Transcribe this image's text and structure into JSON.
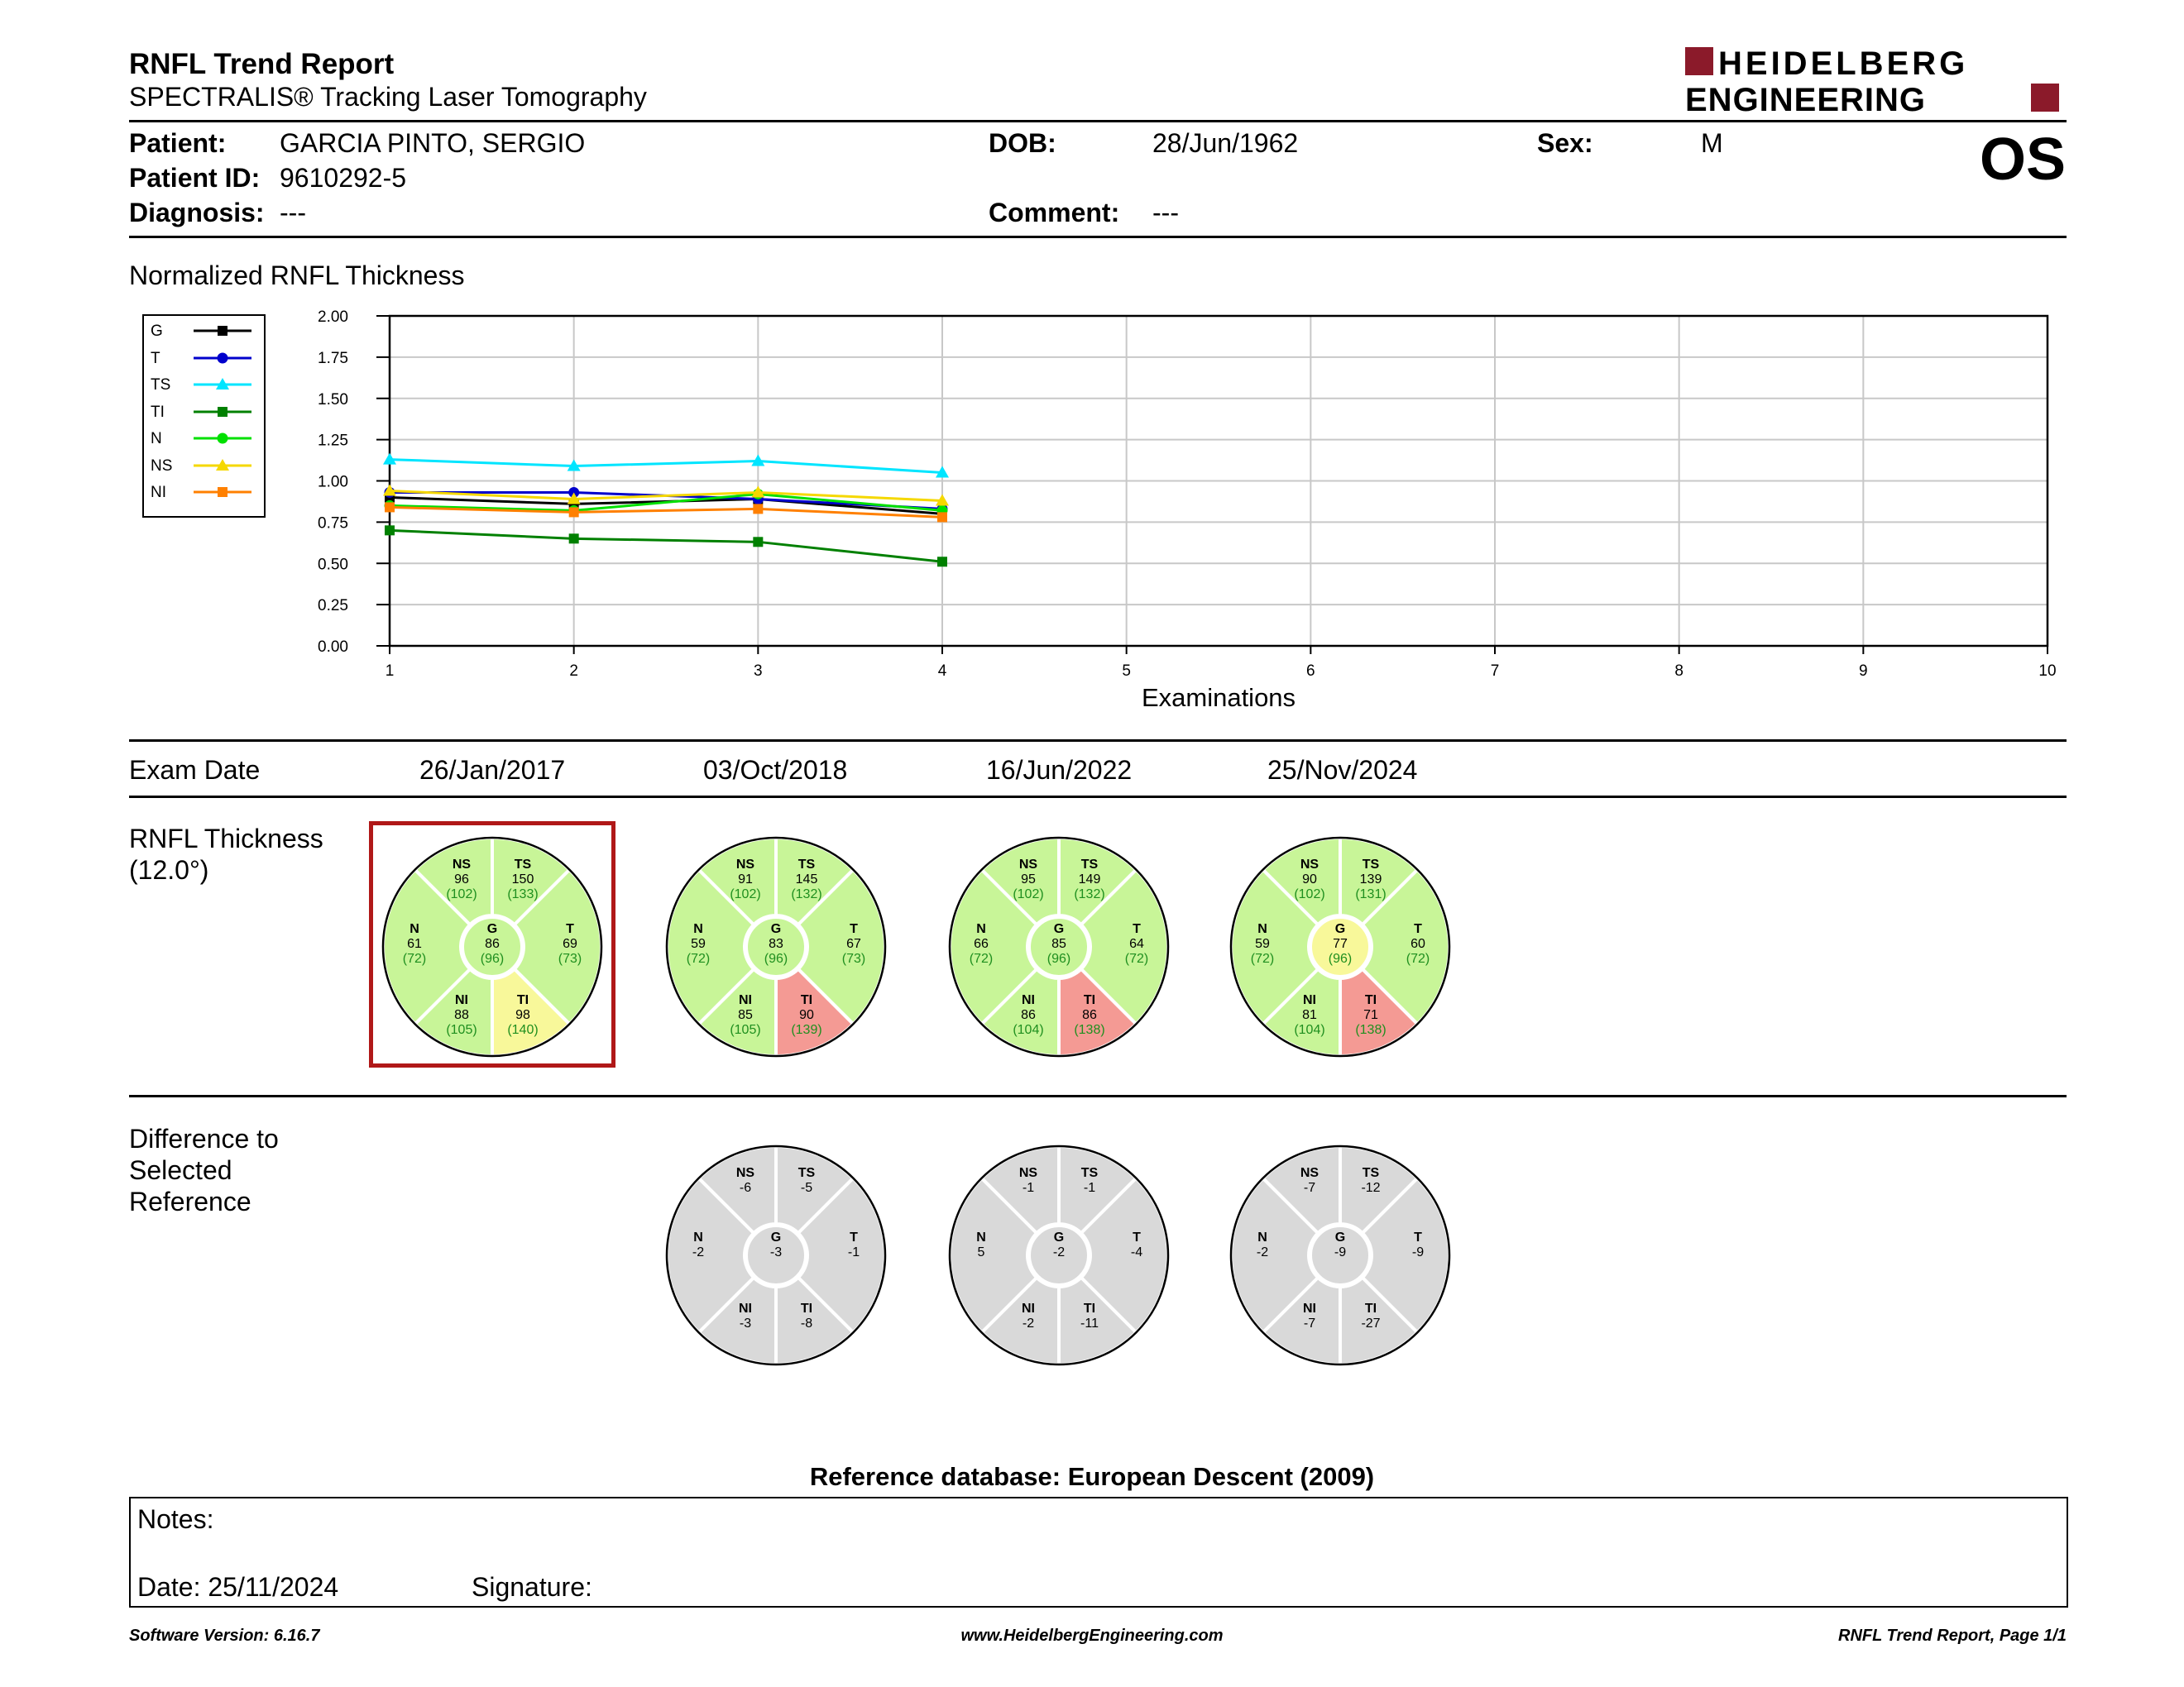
{
  "header": {
    "title": "RNFL Trend Report",
    "subtitle": "SPECTRALIS® Tracking Laser Tomography",
    "logo_line1": "HEIDELBERG",
    "logo_line2": "ENGINEERING",
    "brand_color": "#8b1a2a"
  },
  "patient": {
    "patient_label": "Patient:",
    "patient_value": "GARCIA PINTO, SERGIO",
    "id_label": "Patient ID:",
    "id_value": "9610292-5",
    "diagnosis_label": "Diagnosis:",
    "diagnosis_value": "---",
    "dob_label": "DOB:",
    "dob_value": "28/Jun/1962",
    "comment_label": "Comment:",
    "comment_value": "---",
    "sex_label": "Sex:",
    "sex_value": "M",
    "eye": "OS"
  },
  "chart_title": "Normalized RNFL Thickness",
  "chart_data": {
    "type": "line",
    "xlabel": "Examinations",
    "ylabel": "",
    "x": [
      1,
      2,
      3,
      4
    ],
    "xlim": [
      1,
      10
    ],
    "ylim": [
      0,
      2
    ],
    "xticks": [
      1,
      2,
      3,
      4,
      5,
      6,
      7,
      8,
      9,
      10
    ],
    "yticks": [
      "0.00",
      "0.25",
      "0.50",
      "0.75",
      "1.00",
      "1.25",
      "1.50",
      "1.75",
      "2.00"
    ],
    "grid": true,
    "legend_position": "left",
    "series": [
      {
        "name": "G",
        "color": "#000000",
        "marker": "square",
        "values": [
          0.9,
          0.86,
          0.89,
          0.8
        ]
      },
      {
        "name": "T",
        "color": "#0000cc",
        "marker": "circle",
        "values": [
          0.93,
          0.93,
          0.89,
          0.83
        ]
      },
      {
        "name": "TS",
        "color": "#00e5ff",
        "marker": "triangle",
        "values": [
          1.13,
          1.09,
          1.12,
          1.05
        ]
      },
      {
        "name": "TI",
        "color": "#008000",
        "marker": "square",
        "values": [
          0.7,
          0.65,
          0.63,
          0.51
        ]
      },
      {
        "name": "N",
        "color": "#00e000",
        "marker": "circle",
        "values": [
          0.85,
          0.82,
          0.92,
          0.82
        ]
      },
      {
        "name": "NS",
        "color": "#f5d800",
        "marker": "triangle",
        "values": [
          0.94,
          0.89,
          0.93,
          0.88
        ]
      },
      {
        "name": "NI",
        "color": "#ff8000",
        "marker": "square",
        "values": [
          0.84,
          0.81,
          0.83,
          0.78
        ]
      }
    ]
  },
  "exam": {
    "label": "Exam Date",
    "dates": [
      "26/Jan/2017",
      "03/Oct/2018",
      "16/Jun/2022",
      "25/Nov/2024"
    ]
  },
  "thickness": {
    "label_line1": "RNFL Thickness",
    "label_line2": "(12.0°)",
    "colors": {
      "normal": "#c8f598",
      "borderline": "#f8f89a",
      "outside": "#f49a94"
    },
    "exams": [
      {
        "NS": [
          "96",
          "(102)",
          "normal"
        ],
        "TS": [
          "150",
          "(133)",
          "normal"
        ],
        "N": [
          "61",
          "(72)",
          "normal"
        ],
        "G": [
          "86",
          "(96)",
          "normal"
        ],
        "T": [
          "69",
          "(73)",
          "normal"
        ],
        "NI": [
          "88",
          "(105)",
          "normal"
        ],
        "TI": [
          "98",
          "(140)",
          "borderline"
        ]
      },
      {
        "NS": [
          "91",
          "(102)",
          "normal"
        ],
        "TS": [
          "145",
          "(132)",
          "normal"
        ],
        "N": [
          "59",
          "(72)",
          "normal"
        ],
        "G": [
          "83",
          "(96)",
          "normal"
        ],
        "T": [
          "67",
          "(73)",
          "normal"
        ],
        "NI": [
          "85",
          "(105)",
          "normal"
        ],
        "TI": [
          "90",
          "(139)",
          "outside"
        ]
      },
      {
        "NS": [
          "95",
          "(102)",
          "normal"
        ],
        "TS": [
          "149",
          "(132)",
          "normal"
        ],
        "N": [
          "66",
          "(72)",
          "normal"
        ],
        "G": [
          "85",
          "(96)",
          "normal"
        ],
        "T": [
          "64",
          "(72)",
          "normal"
        ],
        "NI": [
          "86",
          "(104)",
          "normal"
        ],
        "TI": [
          "86",
          "(138)",
          "outside"
        ]
      },
      {
        "NS": [
          "90",
          "(102)",
          "normal"
        ],
        "TS": [
          "139",
          "(131)",
          "normal"
        ],
        "N": [
          "59",
          "(72)",
          "normal"
        ],
        "G": [
          "77",
          "(96)",
          "borderline"
        ],
        "T": [
          "60",
          "(72)",
          "normal"
        ],
        "NI": [
          "81",
          "(104)",
          "normal"
        ],
        "TI": [
          "71",
          "(138)",
          "outside"
        ]
      }
    ],
    "selected_index": 0,
    "selected_color": "#b01818"
  },
  "difference": {
    "label_line1": "Difference to",
    "label_line2": "Selected",
    "label_line3": "Reference",
    "color": "#d9d9d9",
    "exams": [
      {
        "NS": "-6",
        "TS": "-5",
        "N": "-2",
        "G": "-3",
        "T": "-1",
        "NI": "-3",
        "TI": "-8"
      },
      {
        "NS": "-1",
        "TS": "-1",
        "N": "5",
        "G": "-2",
        "T": "-4",
        "NI": "-2",
        "TI": "-11"
      },
      {
        "NS": "-7",
        "TS": "-12",
        "N": "-2",
        "G": "-9",
        "T": "-9",
        "NI": "-7",
        "TI": "-27"
      }
    ]
  },
  "reference_db": "Reference database: European Descent (2009)",
  "notes": {
    "notes_label": "Notes:",
    "date_label": "Date: 25/11/2024",
    "signature_label": "Signature:"
  },
  "footer": {
    "software": "Software Version: 6.16.7",
    "website": "www.HeidelbergEngineering.com",
    "page": "RNFL Trend Report, Page 1/1"
  }
}
